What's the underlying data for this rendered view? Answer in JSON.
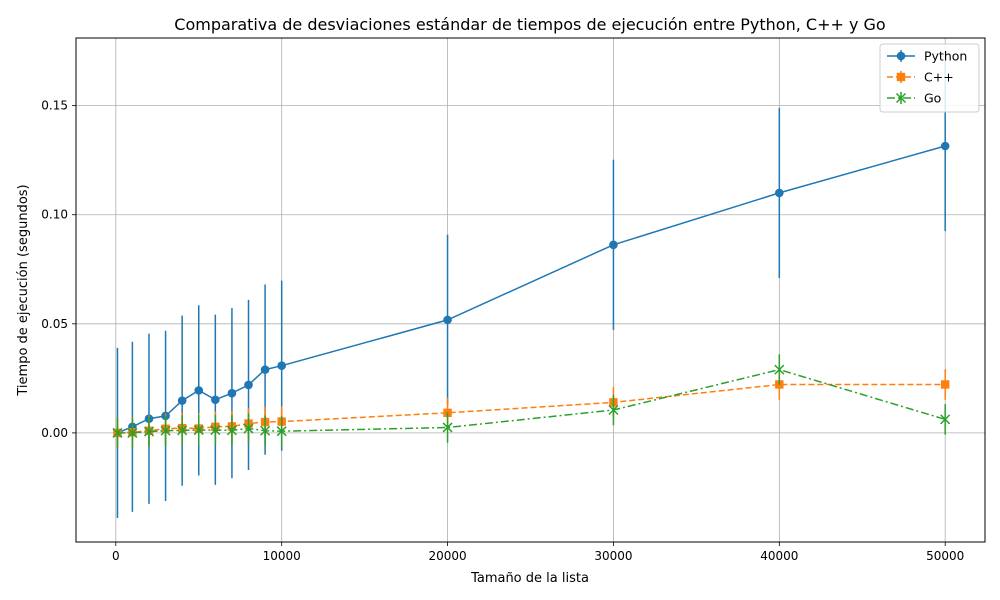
{
  "chart_data": {
    "type": "line",
    "title": "Comparativa de desviaciones estándar de tiempos de ejecución entre Python, C++ y Go",
    "xlabel": "Tamaño de la lista",
    "ylabel": "Tiempo de ejecución (segundos)",
    "xlim": [
      -2400,
      52400
    ],
    "ylim": [
      -0.05,
      0.181
    ],
    "xticks": [
      0,
      10000,
      20000,
      30000,
      40000,
      50000
    ],
    "xtick_labels": [
      "0",
      "10000",
      "20000",
      "30000",
      "40000",
      "50000"
    ],
    "yticks": [
      0.0,
      0.05,
      0.1,
      0.15
    ],
    "ytick_labels": [
      "0.00",
      "0.05",
      "0.10",
      "0.15"
    ],
    "grid": true,
    "legend_position": "top-right",
    "x": [
      100,
      1000,
      2000,
      3000,
      4000,
      5000,
      6000,
      7000,
      8000,
      9000,
      10000,
      20000,
      30000,
      40000,
      50000
    ],
    "series": [
      {
        "name": "Python",
        "color": "#1f77b4",
        "marker": "circle",
        "linestyle": "solid",
        "values": [
          0.0,
          0.0028,
          0.0065,
          0.0078,
          0.0148,
          0.0195,
          0.0152,
          0.0182,
          0.022,
          0.029,
          0.0308,
          0.0518,
          0.0862,
          0.11,
          0.1315
        ],
        "errors": [
          0.039,
          0.039,
          0.039,
          0.039,
          0.039,
          0.039,
          0.039,
          0.039,
          0.039,
          0.039,
          0.039,
          0.039,
          0.039,
          0.039,
          0.039
        ]
      },
      {
        "name": "C++",
        "color": "#ff7f0e",
        "marker": "square",
        "linestyle": "dashed",
        "values": [
          0.0,
          0.0003,
          0.001,
          0.0019,
          0.0022,
          0.002,
          0.0028,
          0.003,
          0.0043,
          0.005,
          0.0052,
          0.0092,
          0.014,
          0.0222,
          0.0222
        ],
        "errors": [
          0.007,
          0.007,
          0.007,
          0.007,
          0.007,
          0.007,
          0.007,
          0.007,
          0.007,
          0.007,
          0.007,
          0.007,
          0.007,
          0.007,
          0.007
        ]
      },
      {
        "name": "Go",
        "color": "#2ca02c",
        "marker": "x",
        "linestyle": "dashdot",
        "values": [
          0.0,
          0.0,
          0.0006,
          0.001,
          0.0012,
          0.0013,
          0.0013,
          0.0012,
          0.002,
          0.001,
          0.0008,
          0.0025,
          0.0105,
          0.029,
          0.0062
        ],
        "errors": [
          0.007,
          0.007,
          0.007,
          0.007,
          0.007,
          0.007,
          0.007,
          0.007,
          0.007,
          0.007,
          0.007,
          0.007,
          0.007,
          0.007,
          0.007
        ]
      }
    ]
  }
}
